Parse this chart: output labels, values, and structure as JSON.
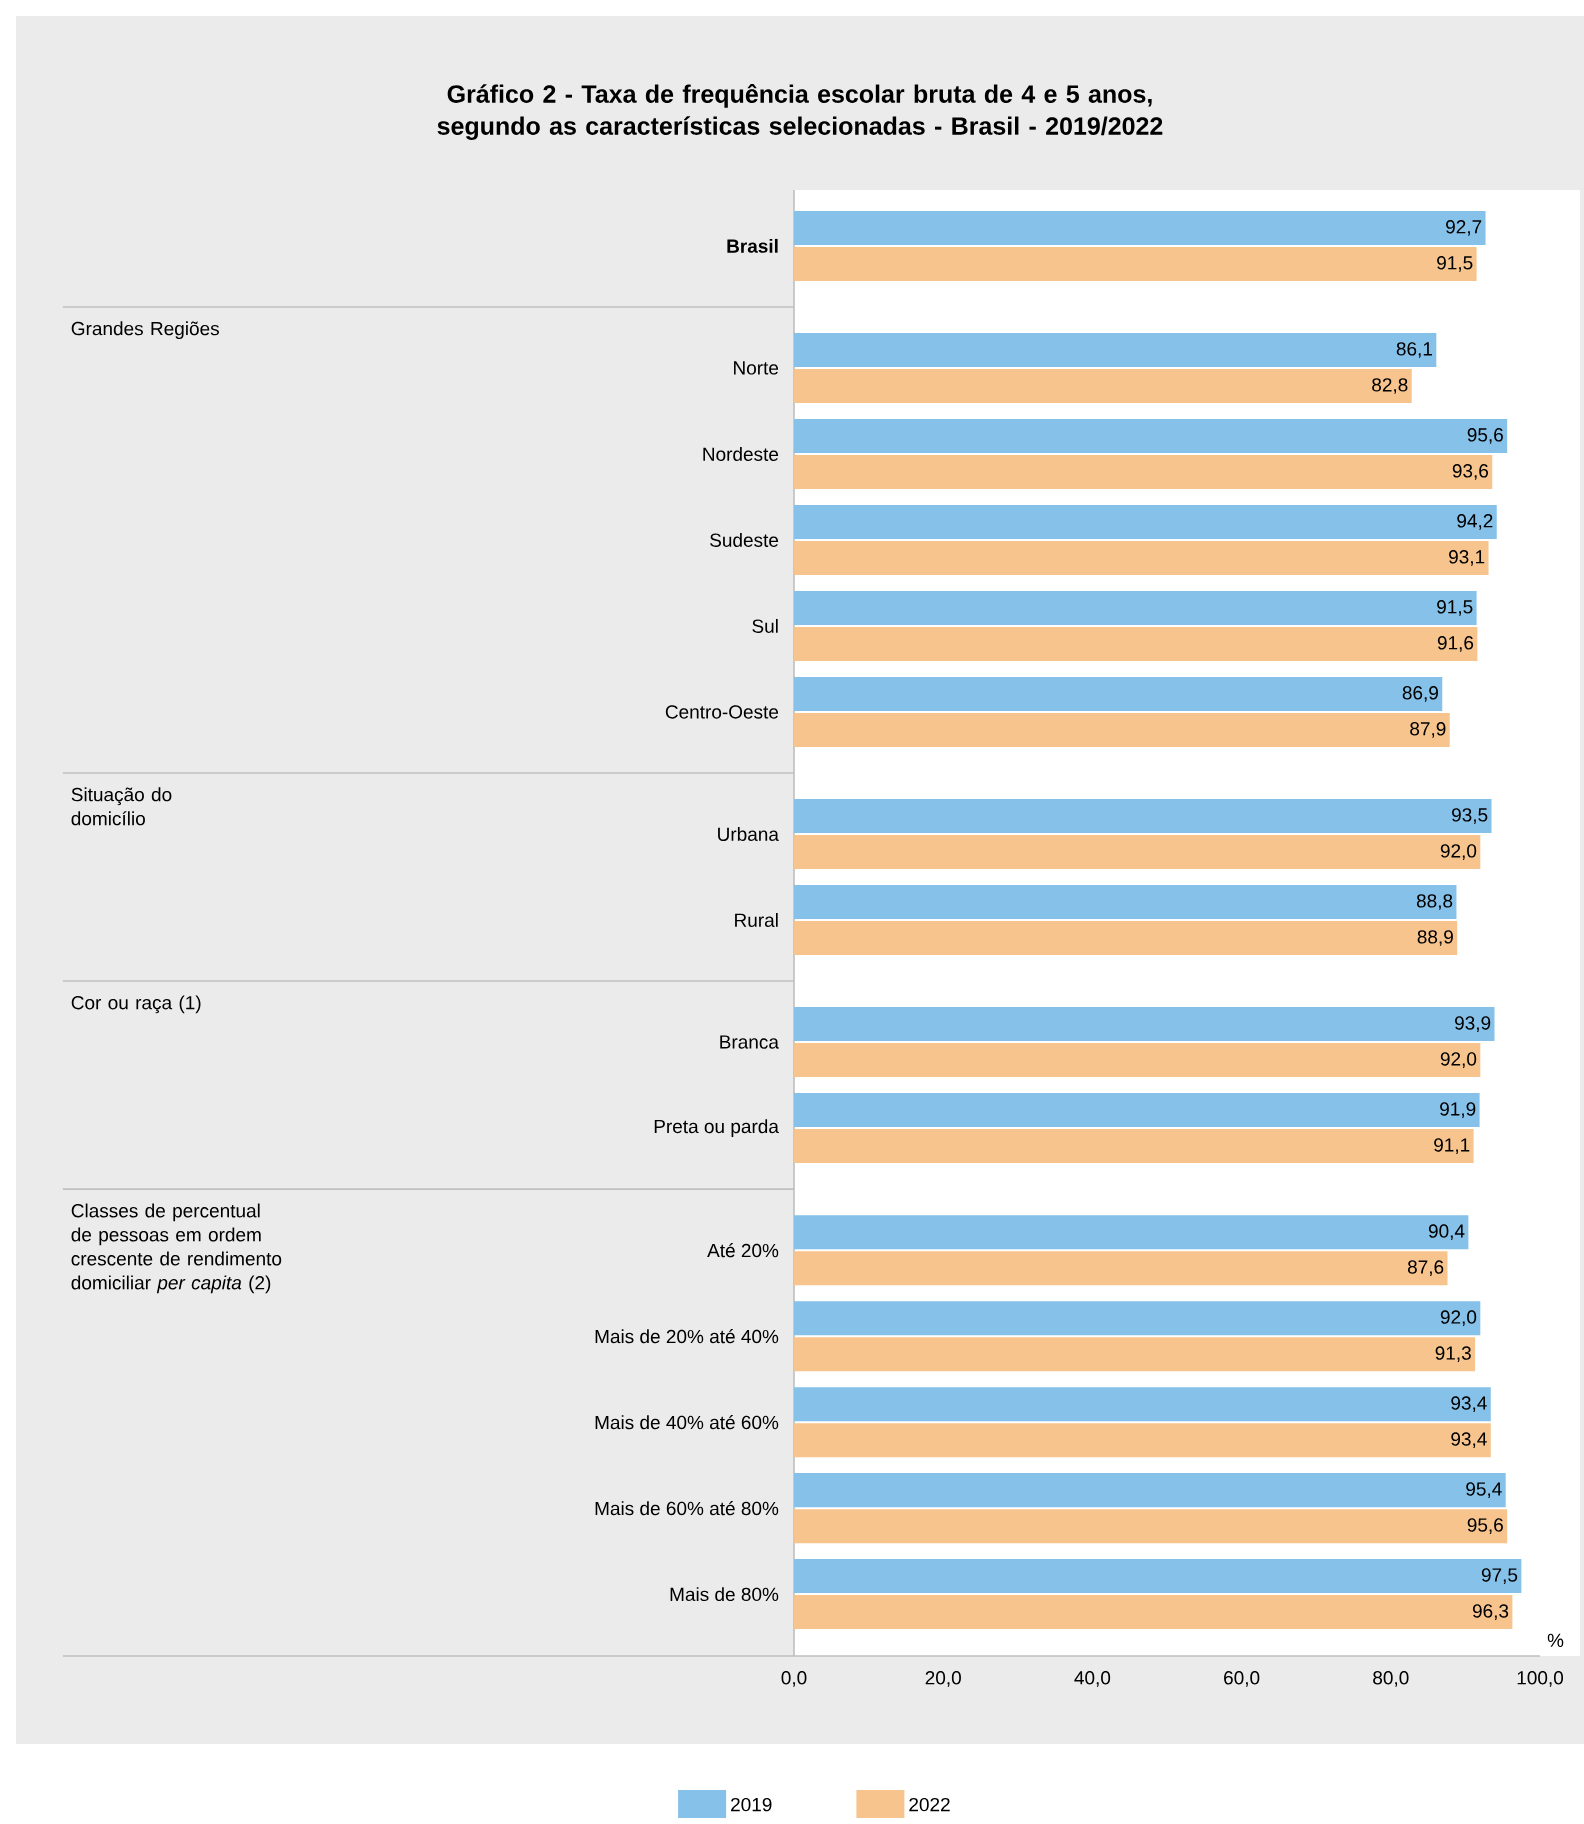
{
  "chart_data": {
    "type": "bar",
    "orientation": "horizontal",
    "title": "Gráfico 2 - Taxa de frequência escolar bruta de 4 e 5 anos, segundo as características selecionadas - Brasil - 2019/2022",
    "xlabel": "%",
    "categories": [
      "Brasil",
      "Norte",
      "Nordeste",
      "Sudeste",
      "Sul",
      "Centro-Oeste",
      "Urbana",
      "Rural",
      "Branca",
      "Preta ou parda",
      "Até 20%",
      "Mais de 20% até 40%",
      "Mais de 40% até 60%",
      "Mais de 60% até 80%",
      "Mais de 80%"
    ],
    "series": [
      {
        "name": "2019",
        "color": "#85c1e9",
        "values": [
          92.7,
          86.1,
          95.6,
          94.2,
          91.5,
          86.9,
          93.5,
          88.8,
          93.9,
          91.9,
          90.4,
          92.0,
          93.4,
          95.4,
          97.5
        ],
        "value_labels": [
          "92,7",
          "86,1",
          "95,6",
          "94,2",
          "91,5",
          "86,9",
          "93,5",
          "88,8",
          "93,9",
          "91,9",
          "90,4",
          "92,0",
          "93,4",
          "95,4",
          "97,5"
        ]
      },
      {
        "name": "2022",
        "color": "#f7c48e",
        "values": [
          91.5,
          82.8,
          93.6,
          93.1,
          91.6,
          87.9,
          92.0,
          88.9,
          92.0,
          91.1,
          87.6,
          91.3,
          93.4,
          95.6,
          96.3
        ],
        "value_labels": [
          "91,5",
          "82,8",
          "93,6",
          "93,1",
          "91,6",
          "87,9",
          "92,0",
          "88,9",
          "92,0",
          "91,1",
          "87,6",
          "91,3",
          "93,4",
          "95,6",
          "96,3"
        ]
      }
    ],
    "xlim": [
      0,
      100
    ],
    "xticks": [
      {
        "value": 0,
        "label": "0,0"
      },
      {
        "value": 20,
        "label": "20,0"
      },
      {
        "value": 40,
        "label": "40,0"
      },
      {
        "value": 60,
        "label": "60,0"
      },
      {
        "value": 80,
        "label": "80,0"
      },
      {
        "value": 100,
        "label": "100,0"
      }
    ],
    "legend": "bottom",
    "annotations": [
      "Grandes Regiões",
      "Situação do domicílio",
      "Cor ou raça (1)",
      "Classes de percentual de pessoas em ordem crescente de rendimento domiciliar *per capita* (2)"
    ]
  }
}
